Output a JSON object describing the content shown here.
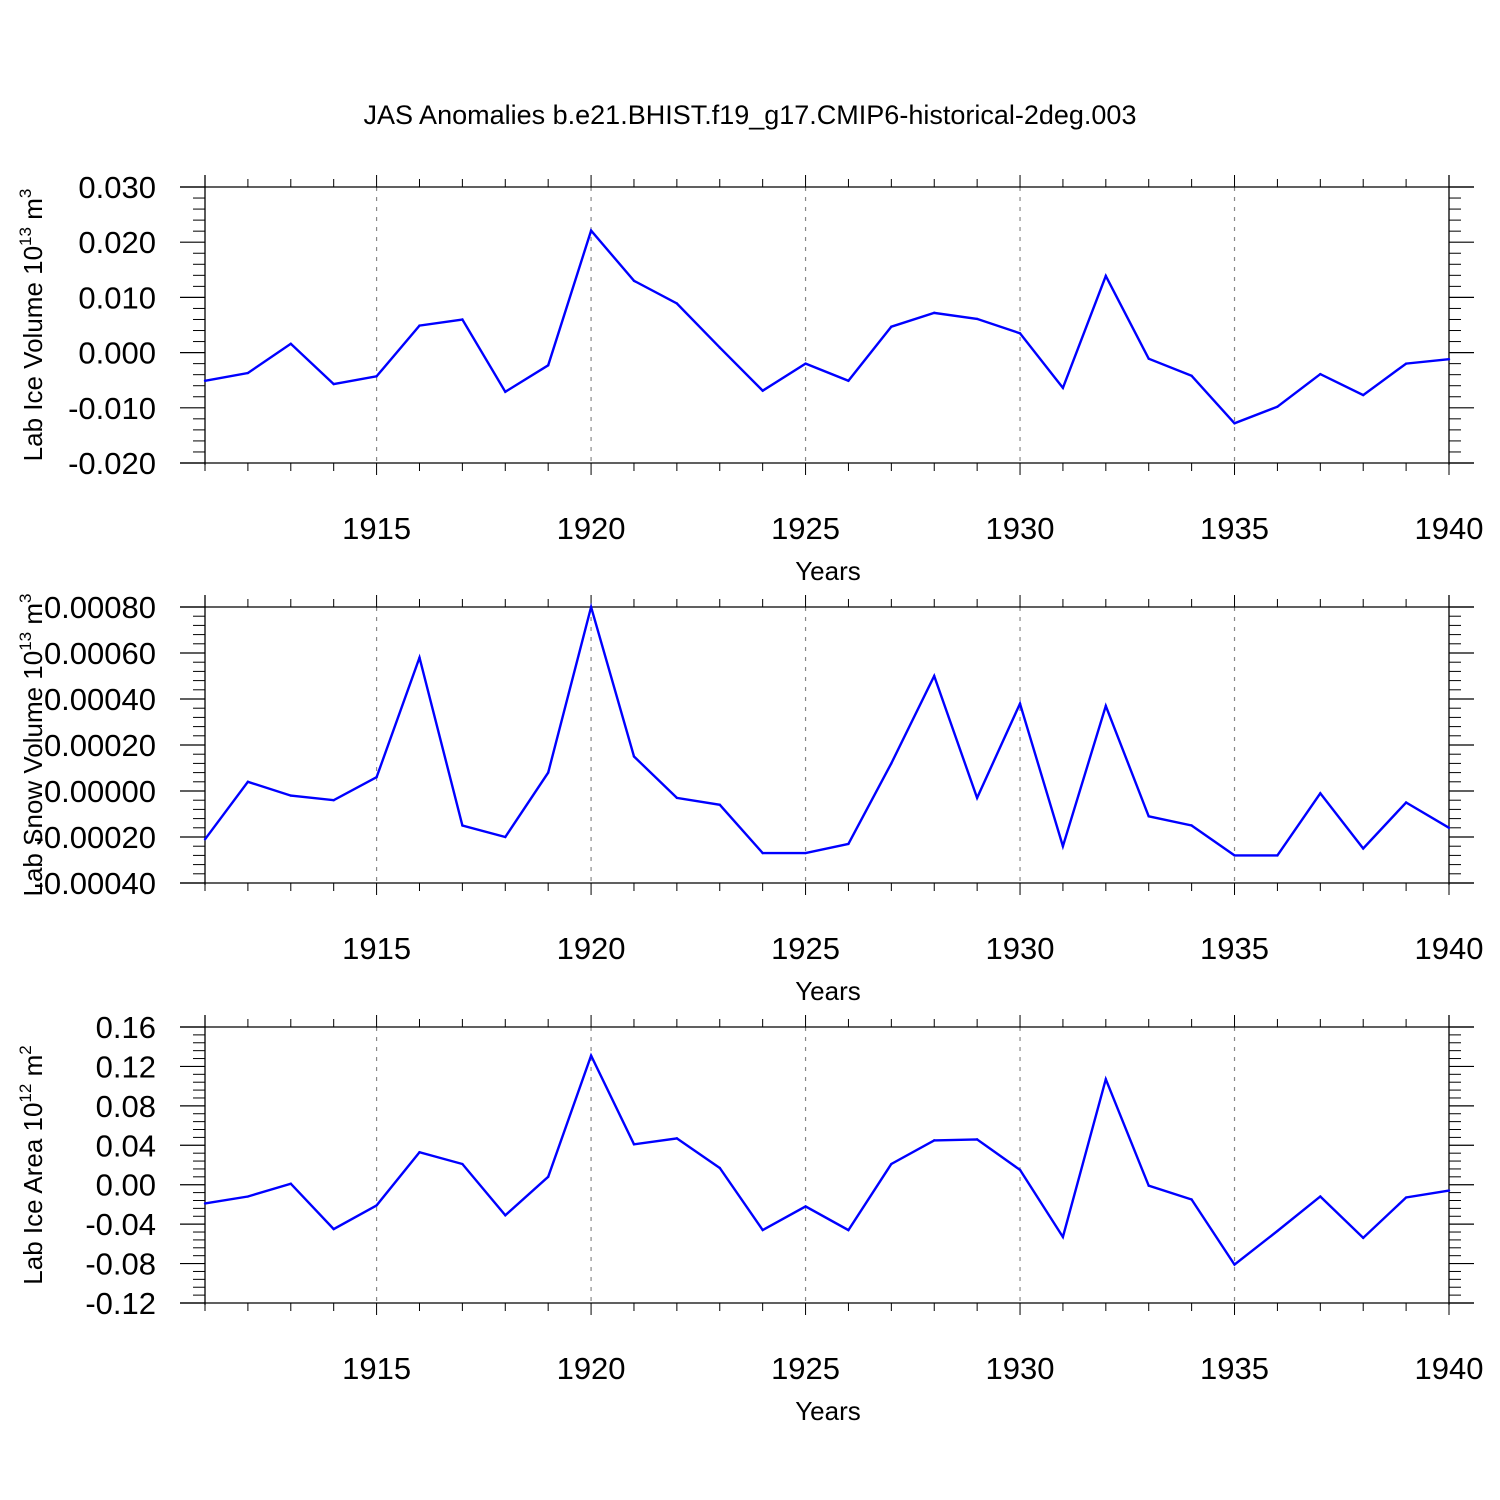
{
  "colors": {
    "line": "#0000ff",
    "axis": "#000000",
    "grid": "#888888"
  },
  "chart_data": [
    {
      "type": "line",
      "title": "JAS Anomalies b.e21.BHIST.f19_g17.CMIP6-historical-2deg.003",
      "xlabel": "Years",
      "ylabel": "Lab Ice Volume 10",
      "ylabel_exp": "13",
      "ylabel_unit": " m",
      "ylabel_unit_exp": "3",
      "xlim": [
        1911,
        1940
      ],
      "ylim": [
        -0.02,
        0.03
      ],
      "yticks": [
        -0.02,
        -0.01,
        0.0,
        0.01,
        0.02,
        0.03
      ],
      "ytick_labels": [
        "-0.020",
        "-0.010",
        "0.000",
        "0.010",
        "0.020",
        "0.030"
      ],
      "xticks": [
        1915,
        1920,
        1925,
        1930,
        1935,
        1940
      ],
      "xtick_labels": [
        "1915",
        "1920",
        "1925",
        "1930",
        "1935",
        "1940"
      ],
      "x": [
        1911,
        1912,
        1913,
        1914,
        1915,
        1916,
        1917,
        1918,
        1919,
        1920,
        1921,
        1922,
        1923,
        1924,
        1925,
        1926,
        1927,
        1928,
        1929,
        1930,
        1931,
        1932,
        1933,
        1934,
        1935,
        1936,
        1937,
        1938,
        1939,
        1940
      ],
      "series": [
        {
          "name": "Lab Ice Volume",
          "values": [
            -0.0051,
            -0.0037,
            0.0016,
            -0.0057,
            -0.0043,
            0.0049,
            0.006,
            -0.0071,
            -0.0023,
            0.0221,
            0.013,
            0.0089,
            0.0009,
            -0.0069,
            -0.002,
            -0.0051,
            0.0047,
            0.0072,
            0.0061,
            0.0035,
            -0.0064,
            0.0139,
            -0.0011,
            -0.0042,
            -0.0128,
            -0.0098,
            -0.0039,
            -0.0077,
            -0.002,
            -0.0012
          ]
        }
      ]
    },
    {
      "type": "line",
      "xlabel": "Years",
      "ylabel": "Lab Snow Volume 10",
      "ylabel_exp": "13",
      "ylabel_unit": " m",
      "ylabel_unit_exp": "3",
      "xlim": [
        1911,
        1940
      ],
      "ylim": [
        -0.0004,
        0.0008
      ],
      "yticks": [
        -0.0004,
        -0.0002,
        0.0,
        0.0002,
        0.0004,
        0.0006,
        0.0008
      ],
      "ytick_labels": [
        "-0.00040",
        "-0.00020",
        "0.00000",
        "0.00020",
        "0.00040",
        "0.00060",
        "0.00080"
      ],
      "xticks": [
        1915,
        1920,
        1925,
        1930,
        1935,
        1940
      ],
      "xtick_labels": [
        "1915",
        "1920",
        "1925",
        "1930",
        "1935",
        "1940"
      ],
      "x": [
        1911,
        1912,
        1913,
        1914,
        1915,
        1916,
        1917,
        1918,
        1919,
        1920,
        1921,
        1922,
        1923,
        1924,
        1925,
        1926,
        1927,
        1928,
        1929,
        1930,
        1931,
        1932,
        1933,
        1934,
        1935,
        1936,
        1937,
        1938,
        1939,
        1940
      ],
      "series": [
        {
          "name": "Lab Snow Volume",
          "values": [
            -0.00021,
            4e-05,
            -2e-05,
            -4e-05,
            6e-05,
            0.00058,
            -0.00015,
            -0.0002,
            8e-05,
            0.0008,
            0.00015,
            -3e-05,
            -6e-05,
            -0.00027,
            -0.00027,
            -0.00023,
            0.00012,
            0.0005,
            -3e-05,
            0.00038,
            -0.00024,
            0.00037,
            -0.00011,
            -0.00015,
            -0.00028,
            -0.00028,
            -1e-05,
            -0.00025,
            -5e-05,
            -0.00016
          ]
        }
      ]
    },
    {
      "type": "line",
      "xlabel": "Years",
      "ylabel": "Lab Ice Area 10",
      "ylabel_exp": "12",
      "ylabel_unit": " m",
      "ylabel_unit_exp": "2",
      "xlim": [
        1911,
        1940
      ],
      "ylim": [
        -0.12,
        0.16
      ],
      "yticks": [
        -0.12,
        -0.08,
        -0.04,
        0.0,
        0.04,
        0.08,
        0.12,
        0.16
      ],
      "ytick_labels": [
        "-0.12",
        "-0.08",
        "-0.04",
        "0.00",
        "0.04",
        "0.08",
        "0.12",
        "0.16"
      ],
      "xticks": [
        1915,
        1920,
        1925,
        1930,
        1935,
        1940
      ],
      "xtick_labels": [
        "1915",
        "1920",
        "1925",
        "1930",
        "1935",
        "1940"
      ],
      "x": [
        1911,
        1912,
        1913,
        1914,
        1915,
        1916,
        1917,
        1918,
        1919,
        1920,
        1921,
        1922,
        1923,
        1924,
        1925,
        1926,
        1927,
        1928,
        1929,
        1930,
        1931,
        1932,
        1933,
        1934,
        1935,
        1936,
        1937,
        1938,
        1939,
        1940
      ],
      "series": [
        {
          "name": "Lab Ice Area",
          "values": [
            -0.019,
            -0.012,
            0.001,
            -0.045,
            -0.021,
            0.033,
            0.021,
            -0.031,
            0.008,
            0.131,
            0.041,
            0.047,
            0.017,
            -0.046,
            -0.022,
            -0.046,
            0.021,
            0.045,
            0.046,
            0.015,
            -0.053,
            0.107,
            -0.001,
            -0.015,
            -0.081,
            -0.047,
            -0.012,
            -0.054,
            -0.013,
            -0.006
          ]
        }
      ]
    }
  ]
}
